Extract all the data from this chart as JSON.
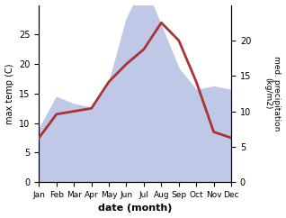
{
  "months": [
    "Jan",
    "Feb",
    "Mar",
    "Apr",
    "May",
    "Jun",
    "Jul",
    "Aug",
    "Sep",
    "Oct",
    "Nov",
    "Dec"
  ],
  "month_indices": [
    1,
    2,
    3,
    4,
    5,
    6,
    7,
    8,
    9,
    10,
    11,
    12
  ],
  "temp": [
    7.5,
    11.5,
    12.0,
    12.5,
    17.0,
    20.0,
    22.5,
    27.0,
    24.0,
    17.0,
    8.5,
    7.5
  ],
  "precip": [
    7.5,
    12.0,
    11.0,
    10.5,
    14.0,
    23.0,
    28.0,
    22.0,
    16.0,
    13.0,
    13.5,
    13.0
  ],
  "temp_color": "#aa3333",
  "precip_fill_color": "#c0c8e8",
  "ylabel_left": "max temp (C)",
  "ylabel_right": "med. precipitation\n(kg/m2)",
  "xlabel": "date (month)",
  "ylim_left": [
    0,
    30
  ],
  "ylim_right": [
    0,
    25
  ],
  "left_yticks": [
    0,
    5,
    10,
    15,
    20,
    25
  ],
  "right_yticks": [
    0,
    5,
    10,
    15,
    20
  ],
  "background_color": "#ffffff"
}
